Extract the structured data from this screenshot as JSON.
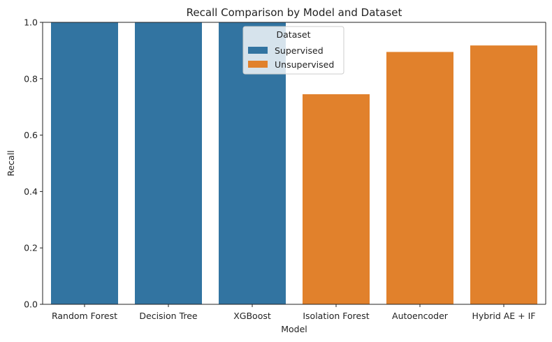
{
  "chart_data": {
    "type": "bar",
    "title": "Recall Comparison by Model and Dataset",
    "xlabel": "Model",
    "ylabel": "Recall",
    "ylim": [
      0,
      1
    ],
    "yticks": [
      0.0,
      0.2,
      0.4,
      0.6,
      0.8,
      1.0
    ],
    "categories": [
      "Random Forest",
      "Decision Tree",
      "XGBoost",
      "Isolation Forest",
      "Autoencoder",
      "Hybrid AE + IF"
    ],
    "groups": [
      "Supervised",
      "Supervised",
      "Supervised",
      "Unsupervised",
      "Unsupervised",
      "Unsupervised"
    ],
    "series": [
      {
        "name": "Supervised",
        "color": "#3274a1",
        "values": [
          1.0,
          1.0,
          1.0,
          null,
          null,
          null
        ]
      },
      {
        "name": "Unsupervised",
        "color": "#e1812c",
        "values": [
          null,
          null,
          null,
          0.745,
          0.895,
          0.918
        ]
      }
    ],
    "legend": {
      "title": "Dataset",
      "placement": "upper-center",
      "entries": [
        "Supervised",
        "Unsupervised"
      ]
    },
    "grid": false
  }
}
